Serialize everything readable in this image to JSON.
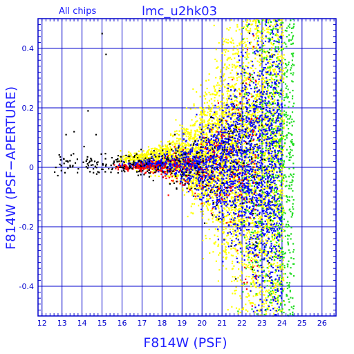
{
  "chart_data": {
    "type": "scatter",
    "title": "lmc_u2hk03",
    "subtitle": "All chips",
    "xlabel": "F814W (PSF)",
    "ylabel": "F814W (PSF−APERTURE)",
    "xlim": [
      11.8,
      26.7
    ],
    "ylim": [
      -0.5,
      0.5
    ],
    "xticks": [
      12,
      13,
      14,
      15,
      16,
      17,
      18,
      19,
      20,
      21,
      22,
      23,
      24,
      25,
      26
    ],
    "yticks": [
      -0.4,
      -0.2,
      0,
      0.2,
      0.4
    ],
    "ytick_labels": [
      "-0.4",
      "-0.2",
      "0",
      "0.2",
      "0.4"
    ],
    "grid": true,
    "colors": {
      "axis": "#0000cc",
      "grid": "#0000cc",
      "text": "#2222ff"
    },
    "series": [
      {
        "color": "#ffff00",
        "x_range": [
          15.5,
          24.2
        ],
        "points": [
          [
            17.2,
            0.22
          ],
          [
            17.8,
            0.35
          ],
          [
            18.3,
            0.12
          ],
          [
            18.9,
            0.28
          ],
          [
            19.2,
            0.41
          ],
          [
            19.6,
            0.18
          ],
          [
            19.9,
            -0.15
          ],
          [
            20.1,
            0.33
          ],
          [
            20.4,
            -0.28
          ],
          [
            20.7,
            0.45
          ],
          [
            20.9,
            -0.38
          ],
          [
            21.2,
            0.24
          ],
          [
            21.5,
            -0.44
          ],
          [
            21.8,
            0.38
          ],
          [
            22.0,
            -0.22
          ],
          [
            22.3,
            0.47
          ],
          [
            22.6,
            -0.35
          ],
          [
            22.9,
            0.29
          ],
          [
            23.1,
            -0.48
          ],
          [
            23.4,
            0.41
          ],
          [
            23.6,
            -0.12
          ],
          [
            23.8,
            0.19
          ],
          [
            24.0,
            -0.31
          ]
        ]
      },
      {
        "color": "#22dd22",
        "x_range": [
          21.0,
          24.6
        ],
        "points": [
          [
            22.1,
            0.12
          ],
          [
            22.5,
            -0.18
          ],
          [
            23.0,
            0.25
          ],
          [
            23.3,
            -0.09
          ],
          [
            23.7,
            0.31
          ],
          [
            23.9,
            -0.26
          ],
          [
            24.2,
            0.18
          ],
          [
            24.4,
            -0.05
          ],
          [
            24.5,
            0.42
          ]
        ]
      },
      {
        "color": "#0000ff",
        "x_range": [
          15.5,
          24.0
        ],
        "points": [
          [
            17.5,
            0.005
          ],
          [
            18.2,
            0.01
          ],
          [
            19.0,
            0.0
          ],
          [
            19.8,
            0.02
          ],
          [
            20.5,
            -0.01
          ],
          [
            21.0,
            0.04
          ],
          [
            21.6,
            -0.06
          ],
          [
            22.2,
            0.08
          ],
          [
            22.8,
            -0.11
          ],
          [
            23.3,
            0.14
          ],
          [
            23.7,
            -0.17
          ]
        ]
      },
      {
        "color": "#ff0000",
        "x_range": [
          15.5,
          22.8
        ],
        "points": [
          [
            16.5,
            0.0
          ],
          [
            17.3,
            0.01
          ],
          [
            18.0,
            -0.005
          ],
          [
            18.8,
            0.015
          ],
          [
            19.5,
            -0.02
          ],
          [
            20.2,
            0.03
          ],
          [
            21.0,
            -0.05
          ],
          [
            21.8,
            0.07
          ]
        ]
      },
      {
        "color": "#000000",
        "x_range": [
          12.5,
          23.5
        ],
        "points": [
          [
            12.6,
            0.01
          ],
          [
            13.1,
            -0.02
          ],
          [
            13.5,
            0.015
          ],
          [
            14.0,
            0.06
          ],
          [
            14.4,
            0.1
          ],
          [
            15.0,
            0.45
          ],
          [
            15.3,
            0.0
          ],
          [
            16.0,
            -0.01
          ],
          [
            17.0,
            0.02
          ],
          [
            18.5,
            0.0
          ],
          [
            19.5,
            -0.03
          ],
          [
            20.4,
            0.05
          ],
          [
            21.3,
            -0.07
          ],
          [
            22.0,
            0.09
          ],
          [
            22.9,
            -0.12
          ]
        ]
      }
    ]
  }
}
